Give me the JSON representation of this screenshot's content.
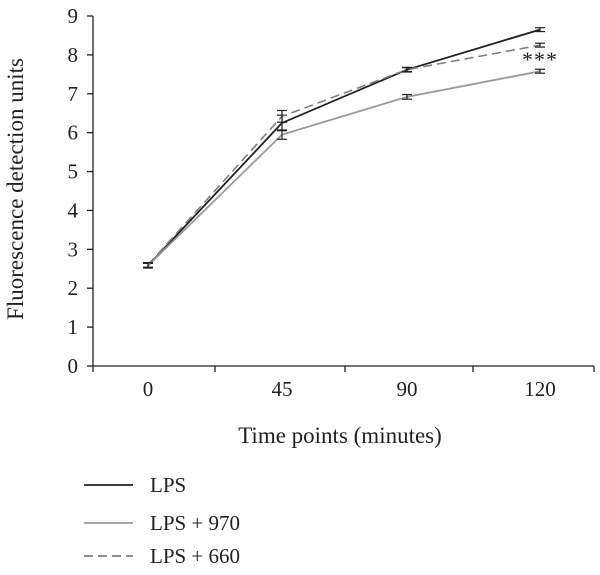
{
  "chart_data": {
    "type": "line",
    "x": [
      0,
      45,
      90,
      120
    ],
    "x_tick_labels": [
      "0",
      "45",
      "90",
      "120"
    ],
    "y_tick_labels": [
      "0",
      "1",
      "2",
      "3",
      "4",
      "5",
      "6",
      "7",
      "8",
      "9"
    ],
    "xlabel": "Time points (minutes)",
    "ylabel": "Fluorescence detection units",
    "ylim": [
      0,
      9
    ],
    "grid": false,
    "legend_position": "bottom-left",
    "annotation": {
      "text": "***",
      "x": 120
    },
    "series": [
      {
        "name": "LPS",
        "values": [
          2.58,
          6.25,
          7.62,
          8.65
        ],
        "errors": [
          0.06,
          0.2,
          0.06,
          0.05
        ],
        "color": "#231f20",
        "style": "solid"
      },
      {
        "name": "LPS + 970",
        "values": [
          2.58,
          5.95,
          6.92,
          7.58
        ],
        "errors": [
          0.06,
          0.12,
          0.06,
          0.05
        ],
        "color": "#9a9a9a",
        "style": "solid"
      },
      {
        "name": "LPS + 660",
        "values": [
          2.6,
          6.42,
          7.62,
          8.25
        ],
        "errors": [
          0.06,
          0.15,
          0.05,
          0.05
        ],
        "color": "#7f7f7f",
        "style": "dashed"
      }
    ]
  }
}
